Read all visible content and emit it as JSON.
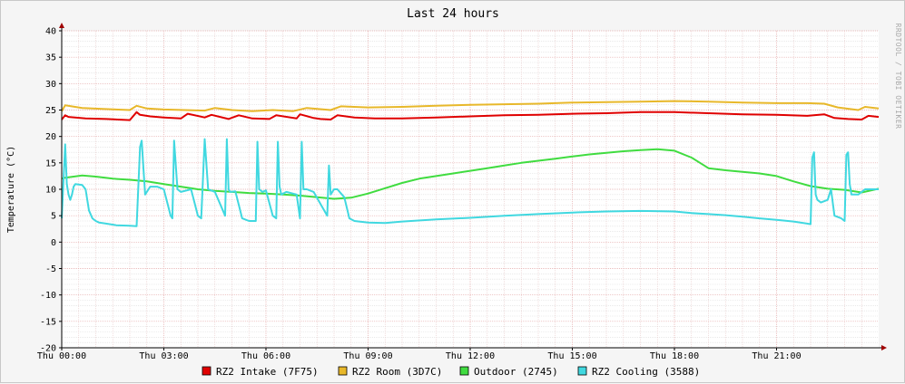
{
  "chart_data": {
    "type": "line",
    "title": "Last 24 hours",
    "ylabel": "Temperature (°C)",
    "watermark": "RRDTOOL / TOBI OETIKER",
    "ylim": [
      -20,
      40
    ],
    "y_ticks": [
      40,
      35,
      30,
      25,
      20,
      15,
      10,
      5,
      0,
      -5,
      -10,
      -15,
      -20
    ],
    "xlim_hours": [
      0,
      24
    ],
    "x_ticks": [
      {
        "h": 0,
        "label": "Thu 00:00"
      },
      {
        "h": 3,
        "label": "Thu 03:00"
      },
      {
        "h": 6,
        "label": "Thu 06:00"
      },
      {
        "h": 9,
        "label": "Thu 09:00"
      },
      {
        "h": 12,
        "label": "Thu 12:00"
      },
      {
        "h": 15,
        "label": "Thu 15:00"
      },
      {
        "h": 18,
        "label": "Thu 18:00"
      },
      {
        "h": 21,
        "label": "Thu 21:00"
      }
    ],
    "grid": true,
    "legend_position": "bottom",
    "series": [
      {
        "name": "RZ2 Intake (7F75)",
        "color": "#e00000",
        "x": [
          0.0,
          0.1,
          0.2,
          0.7,
          1.3,
          2.0,
          2.2,
          2.3,
          2.6,
          3.0,
          3.5,
          3.7,
          4.2,
          4.4,
          4.9,
          5.2,
          5.6,
          6.1,
          6.3,
          6.9,
          7.0,
          7.4,
          7.6,
          7.9,
          8.1,
          8.6,
          9.2,
          10.0,
          11.0,
          12.0,
          13.0,
          14.0,
          15.0,
          16.0,
          17.0,
          18.0,
          19.0,
          20.0,
          21.0,
          21.9,
          22.4,
          22.7,
          23.1,
          23.5,
          23.7,
          24.0
        ],
        "y": [
          23.2,
          24.0,
          23.7,
          23.4,
          23.3,
          23.1,
          24.6,
          24.1,
          23.8,
          23.6,
          23.4,
          24.3,
          23.6,
          24.1,
          23.3,
          24.0,
          23.4,
          23.3,
          24.0,
          23.4,
          24.2,
          23.5,
          23.3,
          23.2,
          24.0,
          23.6,
          23.4,
          23.4,
          23.6,
          23.8,
          24.0,
          24.1,
          24.3,
          24.4,
          24.6,
          24.6,
          24.4,
          24.2,
          24.1,
          23.9,
          24.2,
          23.5,
          23.3,
          23.2,
          23.9,
          23.7
        ]
      },
      {
        "name": "RZ2 Room (3D7C)",
        "color": "#e8b82a",
        "x": [
          0.0,
          0.1,
          0.6,
          1.2,
          2.0,
          2.2,
          2.5,
          3.0,
          3.6,
          4.2,
          4.5,
          5.0,
          5.6,
          6.2,
          6.8,
          7.2,
          7.9,
          8.2,
          9.0,
          10.0,
          11.0,
          12.0,
          13.0,
          14.0,
          15.0,
          16.0,
          17.0,
          18.0,
          19.0,
          20.0,
          21.0,
          21.9,
          22.4,
          22.8,
          23.4,
          23.6,
          24.0
        ],
        "y": [
          24.8,
          25.9,
          25.4,
          25.2,
          25.0,
          25.8,
          25.3,
          25.1,
          25.0,
          24.9,
          25.4,
          25.0,
          24.8,
          25.0,
          24.8,
          25.4,
          25.0,
          25.7,
          25.5,
          25.6,
          25.8,
          26.0,
          26.1,
          26.2,
          26.4,
          26.5,
          26.6,
          26.7,
          26.6,
          26.4,
          26.3,
          26.3,
          26.2,
          25.5,
          25.0,
          25.6,
          25.3
        ]
      },
      {
        "name": "Outdoor (2745)",
        "color": "#40dc40",
        "x": [
          0.0,
          0.1,
          0.6,
          1.0,
          1.5,
          2.0,
          2.5,
          3.0,
          3.5,
          4.0,
          4.5,
          5.0,
          5.5,
          6.0,
          6.5,
          7.0,
          7.5,
          8.0,
          8.5,
          9.0,
          9.5,
          10.0,
          10.5,
          11.0,
          11.5,
          12.0,
          12.5,
          13.0,
          13.5,
          14.0,
          14.5,
          15.0,
          15.5,
          16.0,
          16.5,
          17.0,
          17.5,
          18.0,
          18.5,
          19.0,
          19.5,
          20.0,
          20.5,
          21.0,
          21.5,
          22.0,
          22.5,
          23.0,
          23.5,
          24.0
        ],
        "y": [
          12.0,
          12.2,
          12.6,
          12.4,
          12.0,
          11.8,
          11.5,
          11.0,
          10.5,
          10.0,
          9.7,
          9.5,
          9.3,
          9.2,
          9.0,
          8.8,
          8.5,
          8.2,
          8.4,
          9.2,
          10.2,
          11.2,
          12.0,
          12.5,
          13.0,
          13.5,
          14.0,
          14.5,
          15.0,
          15.4,
          15.8,
          16.2,
          16.6,
          16.9,
          17.2,
          17.4,
          17.6,
          17.3,
          16.0,
          14.0,
          13.6,
          13.3,
          13.0,
          12.5,
          11.5,
          10.6,
          10.1,
          9.9,
          9.4,
          10.1
        ]
      },
      {
        "name": "RZ2 Cooling (3588)",
        "color": "#40d8e0",
        "x": [
          0.0,
          0.05,
          0.1,
          0.15,
          0.2,
          0.25,
          0.3,
          0.35,
          0.4,
          0.6,
          0.7,
          0.8,
          0.9,
          1.0,
          1.1,
          1.3,
          1.6,
          2.0,
          2.2,
          2.3,
          2.35,
          2.4,
          2.45,
          2.55,
          2.6,
          2.8,
          3.0,
          3.2,
          3.25,
          3.3,
          3.4,
          3.5,
          3.8,
          4.0,
          4.1,
          4.2,
          4.3,
          4.5,
          4.8,
          4.85,
          4.9,
          4.95,
          5.1,
          5.3,
          5.5,
          5.7,
          5.75,
          5.8,
          5.9,
          6.0,
          6.2,
          6.3,
          6.35,
          6.4,
          6.45,
          6.6,
          6.9,
          7.0,
          7.05,
          7.1,
          7.2,
          7.4,
          7.8,
          7.85,
          7.9,
          8.0,
          8.1,
          8.3,
          8.45,
          8.6,
          9.0,
          9.5,
          10.0,
          11.0,
          12.0,
          13.0,
          14.0,
          15.0,
          16.0,
          17.0,
          18.0,
          18.5,
          19.0,
          19.5,
          20.0,
          20.5,
          21.0,
          21.5,
          22.0,
          22.05,
          22.1,
          22.15,
          22.2,
          22.3,
          22.5,
          22.6,
          22.7,
          22.9,
          23.0,
          23.05,
          23.1,
          23.15,
          23.2,
          23.4,
          23.6,
          24.0
        ],
        "y": [
          4.5,
          11.5,
          18.5,
          11.0,
          9.0,
          8.0,
          9.0,
          10.5,
          11.0,
          10.8,
          10.0,
          6.0,
          4.5,
          4.0,
          3.7,
          3.5,
          3.2,
          3.1,
          3.0,
          18.0,
          19.2,
          14.0,
          9.0,
          10.0,
          10.5,
          10.5,
          10.0,
          5.0,
          4.5,
          19.2,
          10.0,
          9.5,
          10.0,
          5.0,
          4.5,
          19.5,
          10.0,
          9.5,
          5.0,
          19.5,
          10.0,
          9.5,
          9.6,
          4.5,
          4.0,
          4.0,
          19.0,
          10.0,
          9.5,
          9.8,
          5.0,
          4.5,
          19.0,
          10.5,
          9.0,
          9.5,
          9.0,
          4.5,
          19.0,
          10.0,
          10.0,
          9.5,
          5.0,
          14.5,
          9.0,
          10.0,
          10.0,
          8.5,
          4.5,
          4.0,
          3.7,
          3.6,
          3.9,
          4.3,
          4.6,
          5.0,
          5.3,
          5.6,
          5.8,
          5.9,
          5.8,
          5.5,
          5.3,
          5.1,
          4.8,
          4.5,
          4.2,
          3.9,
          3.4,
          16.0,
          17.0,
          9.0,
          8.0,
          7.5,
          8.0,
          10.0,
          5.0,
          4.5,
          4.0,
          16.5,
          17.0,
          11.0,
          9.0,
          9.0,
          10.0,
          10.0
        ]
      }
    ]
  }
}
